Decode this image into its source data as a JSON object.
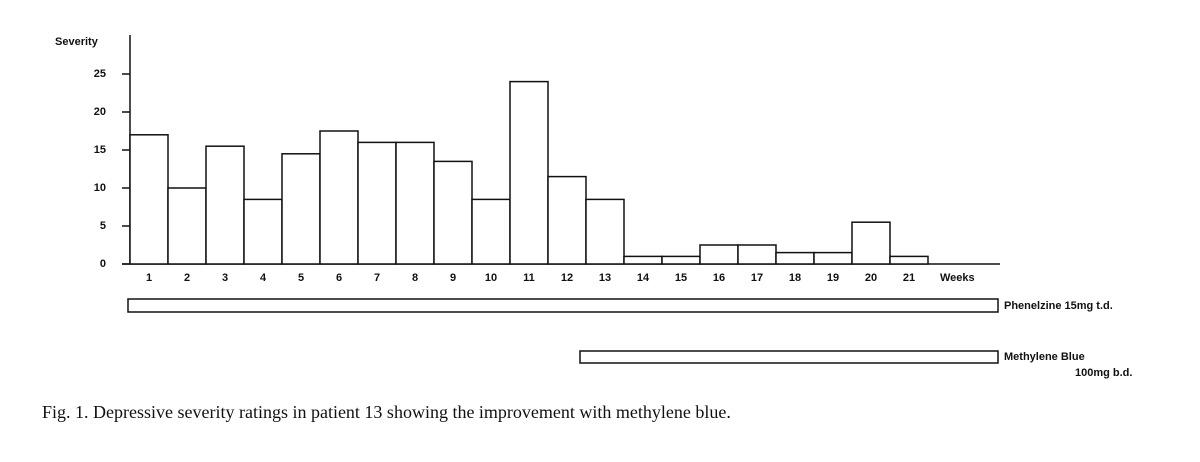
{
  "chart_data": {
    "type": "bar",
    "ylabel": "Severity",
    "xlabel": "Weeks",
    "categories": [
      "1",
      "2",
      "3",
      "4",
      "5",
      "6",
      "7",
      "8",
      "9",
      "10",
      "11",
      "12",
      "13",
      "14",
      "15",
      "16",
      "17",
      "18",
      "19",
      "20",
      "21"
    ],
    "values": [
      17,
      10,
      15.5,
      8.5,
      14.5,
      17.5,
      16,
      16,
      13.5,
      8.5,
      24,
      11.5,
      8.5,
      1,
      1,
      2.5,
      2.5,
      1.5,
      1.5,
      5.5,
      1
    ],
    "color": "#ffffff",
    "ylim": [
      0,
      30
    ],
    "yticks": [
      0,
      5,
      10,
      15,
      20,
      25
    ],
    "treatments": [
      {
        "label": "Phenelzine 15mg t.d."
      },
      {
        "label": "Methylene Blue",
        "dose": "100mg b.d."
      }
    ],
    "caption": "Fig. 1. Depressive severity ratings in patient 13 showing the improvement with methylene blue."
  }
}
